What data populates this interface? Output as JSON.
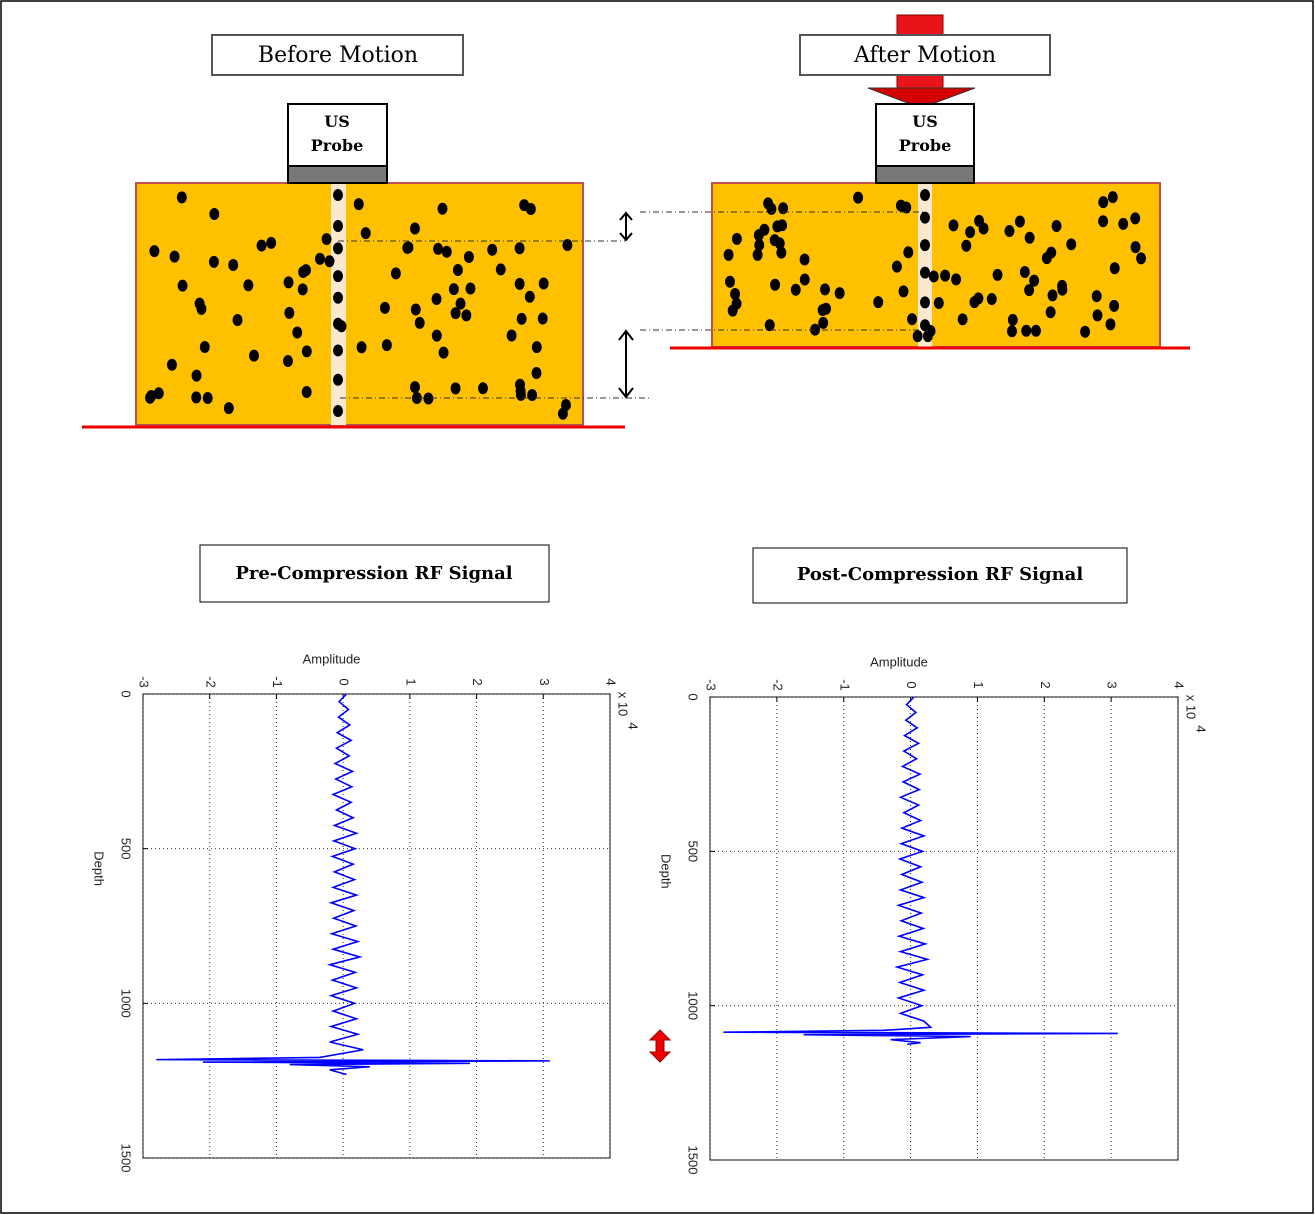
{
  "diagram": {
    "before": {
      "title": "Before Motion",
      "probe": [
        "US",
        "Probe"
      ]
    },
    "after": {
      "title": "After Motion",
      "probe": [
        "US",
        "Probe"
      ]
    }
  },
  "signal_titles": [
    "Pre-Compression RF Signal",
    "Post-Compression RF Signal"
  ],
  "chart_data": [
    {
      "type": "line",
      "orientation": "vertical",
      "xlabel": "Depth",
      "ylabel": "Amplitude",
      "y_scale_label": "x 10",
      "y_scale_exponent": "4",
      "x": [
        0,
        25,
        50,
        75,
        100,
        125,
        150,
        175,
        200,
        225,
        250,
        275,
        300,
        325,
        350,
        375,
        400,
        425,
        450,
        475,
        500,
        525,
        550,
        575,
        600,
        625,
        650,
        675,
        700,
        725,
        750,
        775,
        800,
        825,
        850,
        875,
        900,
        925,
        950,
        975,
        1000,
        1025,
        1050,
        1075,
        1100,
        1125,
        1150,
        1175,
        1182,
        1186,
        1190,
        1194,
        1198,
        1205,
        1215,
        1230
      ],
      "values": [
        0.05,
        -0.06,
        0.08,
        -0.07,
        0.1,
        -0.09,
        0.12,
        -0.1,
        0.09,
        -0.12,
        0.14,
        -0.11,
        0.13,
        -0.15,
        0.12,
        -0.1,
        0.15,
        -0.13,
        0.2,
        -0.14,
        0.18,
        -0.16,
        0.15,
        -0.13,
        0.17,
        -0.15,
        0.2,
        -0.18,
        0.16,
        -0.14,
        0.19,
        -0.17,
        0.22,
        -0.15,
        0.25,
        -0.2,
        0.18,
        -0.16,
        0.2,
        -0.18,
        0.17,
        -0.15,
        0.2,
        -0.18,
        0.22,
        -0.2,
        0.3,
        -0.35,
        -2.8,
        3.1,
        -2.1,
        1.9,
        -0.8,
        0.4,
        -0.2,
        0.05
      ],
      "color": "#0000ff",
      "xlim": [
        0,
        1500
      ],
      "xticks": [
        0,
        500,
        1000,
        1500
      ],
      "ylim": [
        -3,
        4
      ],
      "yticks": [
        -3,
        -2,
        -1,
        0,
        1,
        2,
        3,
        4
      ],
      "grid": true
    },
    {
      "type": "line",
      "orientation": "vertical",
      "xlabel": "Depth",
      "ylabel": "Amplitude",
      "y_scale_label": "x 10",
      "y_scale_exponent": "4",
      "x": [
        0,
        25,
        50,
        75,
        100,
        125,
        150,
        175,
        200,
        225,
        250,
        275,
        300,
        325,
        350,
        375,
        400,
        425,
        450,
        475,
        500,
        525,
        550,
        575,
        600,
        625,
        650,
        675,
        700,
        725,
        750,
        775,
        800,
        825,
        850,
        875,
        900,
        925,
        950,
        975,
        1000,
        1025,
        1050,
        1070,
        1080,
        1086,
        1090,
        1094,
        1100,
        1110,
        1120,
        1125
      ],
      "values": [
        0.05,
        -0.06,
        0.08,
        -0.07,
        0.1,
        -0.09,
        0.12,
        -0.1,
        0.09,
        -0.12,
        0.14,
        -0.11,
        0.13,
        -0.15,
        0.12,
        -0.1,
        0.15,
        -0.13,
        0.2,
        -0.14,
        0.18,
        -0.16,
        0.15,
        -0.13,
        0.17,
        -0.15,
        0.2,
        -0.18,
        0.16,
        -0.14,
        0.19,
        -0.17,
        0.22,
        -0.15,
        0.25,
        -0.2,
        0.18,
        -0.16,
        0.2,
        -0.18,
        0.17,
        -0.15,
        0.2,
        0.3,
        -0.4,
        -2.8,
        3.1,
        -1.6,
        0.9,
        -0.3,
        0.15,
        -0.05
      ],
      "color": "#0000ff",
      "xlim": [
        0,
        1500
      ],
      "xticks": [
        0,
        500,
        1000,
        1500
      ],
      "ylim": [
        -3,
        4
      ],
      "yticks": [
        -3,
        -2,
        -1,
        0,
        1,
        2,
        3,
        4
      ],
      "grid": true
    }
  ]
}
